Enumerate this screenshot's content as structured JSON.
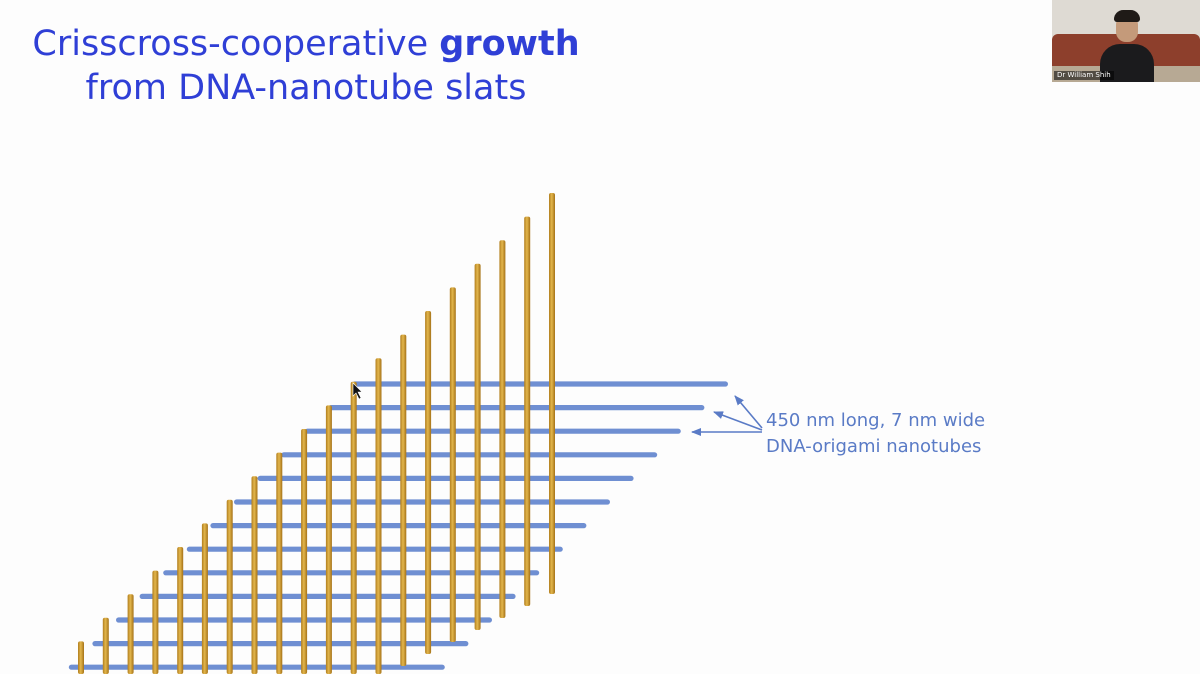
{
  "slide": {
    "title_line1_prefix": "Crisscross-cooperative ",
    "title_line1_bold": "growth",
    "title_line2": "from DNA-nanotube slats",
    "annotation_line1": "450 nm long, 7 nm wide",
    "annotation_line2": "DNA-origami nanotubes"
  },
  "colors": {
    "title": "#2f3fd6",
    "annotation": "#5a7bc6",
    "horizontal_slat": "#6f8fd2",
    "vertical_slat": "#d7a93c"
  },
  "webcam": {
    "participant_name": "Dr William Shih"
  },
  "icons": {
    "cursor": "mouse-pointer-icon"
  }
}
